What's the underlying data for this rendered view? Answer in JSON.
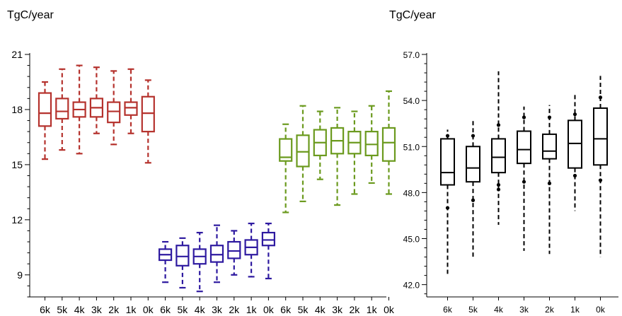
{
  "chart_data": [
    {
      "type": "boxplot",
      "ylabel": "TgC/year",
      "ylim": [
        7.8,
        21
      ],
      "yticks": [
        9,
        12,
        15,
        18,
        21
      ],
      "yticklabels": [
        "9",
        "12",
        "15",
        "18",
        "21"
      ],
      "categories": [
        "6k",
        "5k",
        "4k",
        "3k",
        "2k",
        "1k",
        "0k",
        "6k",
        "5k",
        "4k",
        "3k",
        "2k",
        "1k",
        "0k",
        "6k",
        "5k",
        "4k",
        "3k",
        "2k",
        "1k",
        "0k"
      ],
      "series": [
        {
          "color": "#b5322d",
          "boxes": [
            {
              "min": 15.3,
              "q1": 17.1,
              "median": 17.8,
              "q3": 18.9,
              "max": 19.5
            },
            {
              "min": 15.8,
              "q1": 17.5,
              "median": 17.9,
              "q3": 18.6,
              "max": 20.2
            },
            {
              "min": 15.6,
              "q1": 17.6,
              "median": 18.0,
              "q3": 18.4,
              "max": 20.4
            },
            {
              "min": 16.7,
              "q1": 17.6,
              "median": 18.1,
              "q3": 18.6,
              "max": 20.3
            },
            {
              "min": 16.1,
              "q1": 17.3,
              "median": 17.9,
              "q3": 18.4,
              "max": 20.1
            },
            {
              "min": 16.7,
              "q1": 17.7,
              "median": 18.1,
              "q3": 18.4,
              "max": 20.2
            },
            {
              "min": 15.1,
              "q1": 16.8,
              "median": 17.8,
              "q3": 18.7,
              "max": 19.6
            }
          ]
        },
        {
          "color": "#2e1aa0",
          "boxes": [
            {
              "min": 8.6,
              "q1": 9.8,
              "median": 10.1,
              "q3": 10.4,
              "max": 10.8
            },
            {
              "min": 8.3,
              "q1": 9.5,
              "median": 10.0,
              "q3": 10.6,
              "max": 11.0
            },
            {
              "min": 8.1,
              "q1": 9.6,
              "median": 10.0,
              "q3": 10.4,
              "max": 11.3
            },
            {
              "min": 8.6,
              "q1": 9.7,
              "median": 10.1,
              "q3": 10.6,
              "max": 11.7
            },
            {
              "min": 9.0,
              "q1": 9.9,
              "median": 10.3,
              "q3": 10.8,
              "max": 11.4
            },
            {
              "min": 8.9,
              "q1": 10.1,
              "median": 10.5,
              "q3": 10.9,
              "max": 11.8
            },
            {
              "min": 8.8,
              "q1": 10.6,
              "median": 10.9,
              "q3": 11.3,
              "max": 11.8
            }
          ]
        },
        {
          "color": "#6b9a1e",
          "boxes": [
            {
              "min": 12.4,
              "q1": 15.2,
              "median": 15.4,
              "q3": 16.4,
              "max": 17.2
            },
            {
              "min": 13.0,
              "q1": 14.9,
              "median": 15.7,
              "q3": 16.6,
              "max": 18.2
            },
            {
              "min": 14.2,
              "q1": 15.5,
              "median": 16.2,
              "q3": 16.9,
              "max": 17.9
            },
            {
              "min": 12.8,
              "q1": 15.6,
              "median": 16.3,
              "q3": 17.0,
              "max": 18.1
            },
            {
              "min": 13.4,
              "q1": 15.6,
              "median": 16.2,
              "q3": 16.8,
              "max": 17.9
            },
            {
              "min": 14.0,
              "q1": 15.5,
              "median": 16.1,
              "q3": 16.8,
              "max": 18.2
            },
            {
              "min": 13.4,
              "q1": 15.2,
              "median": 16.2,
              "q3": 17.0,
              "max": 19.0
            }
          ]
        }
      ]
    },
    {
      "type": "boxplot",
      "ylabel": "TgC/year",
      "ylim": [
        41.2,
        57.0
      ],
      "yticks": [
        42.0,
        45.0,
        48.0,
        51.0,
        54.0,
        57.0
      ],
      "yticklabels": [
        "42.0",
        "45.0",
        "48.0",
        "51.0",
        "54.0",
        "57.0"
      ],
      "categories": [
        "6k",
        "5k",
        "4k",
        "3k",
        "2k",
        "1k",
        "0k"
      ],
      "series": [
        {
          "color": "#000000",
          "boxes": [
            {
              "min": 42.7,
              "q1": 48.5,
              "median": 49.3,
              "q3": 51.5,
              "max": 52.1,
              "outliers": [
                47.0,
                51.7
              ]
            },
            {
              "min": 43.7,
              "q1": 48.7,
              "median": 49.6,
              "q3": 51.0,
              "max": 52.8,
              "outliers": [
                47.5,
                51.7
              ]
            },
            {
              "min": 45.9,
              "q1": 49.3,
              "median": 50.3,
              "q3": 51.5,
              "max": 55.9,
              "outliers": [
                48.2,
                48.5,
                52.4
              ]
            },
            {
              "min": 44.2,
              "q1": 49.9,
              "median": 50.8,
              "q3": 52.0,
              "max": 53.6,
              "outliers": [
                48.7,
                52.9
              ]
            },
            {
              "min": 44.0,
              "q1": 50.2,
              "median": 50.7,
              "q3": 51.8,
              "max": 53.7,
              "outliers": [
                48.6,
                52.9
              ]
            },
            {
              "min": 46.8,
              "q1": 49.6,
              "median": 51.2,
              "q3": 52.7,
              "max": 54.4,
              "outliers": [
                49.1,
                53.1
              ]
            },
            {
              "min": 43.8,
              "q1": 49.8,
              "median": 51.5,
              "q3": 53.5,
              "max": 55.6,
              "outliers": [
                48.8,
                54.2
              ]
            }
          ]
        }
      ]
    }
  ]
}
